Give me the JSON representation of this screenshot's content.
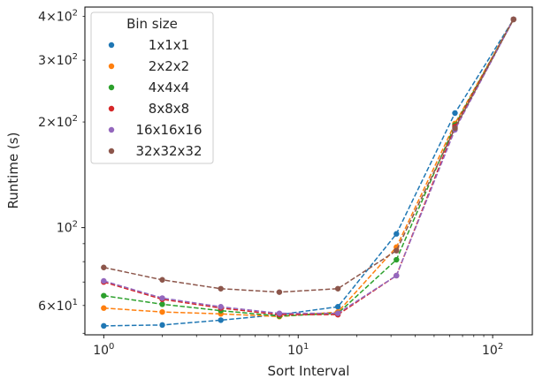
{
  "chart_data": {
    "type": "line",
    "xlabel": "Sort Interval",
    "ylabel": "Runtime (s)",
    "xscale": "log",
    "yscale": "log",
    "xlim": [
      0.8,
      160
    ],
    "ylim": [
      49.5,
      425
    ],
    "x": [
      1,
      2,
      4,
      8,
      16,
      32,
      64,
      128
    ],
    "x_ticks": [
      {
        "value": 1,
        "base": "10",
        "exp": "0"
      },
      {
        "value": 10,
        "base": "10",
        "exp": "1"
      },
      {
        "value": 100,
        "base": "10",
        "exp": "2"
      }
    ],
    "y_ticks": [
      {
        "value": 60,
        "mant": "6",
        "base": "10",
        "exp": "1"
      },
      {
        "value": 100,
        "mant": "",
        "base": "10",
        "exp": "2"
      },
      {
        "value": 200,
        "mant": "2",
        "base": "10",
        "exp": "2"
      },
      {
        "value": 300,
        "mant": "3",
        "base": "10",
        "exp": "2"
      },
      {
        "value": 400,
        "mant": "4",
        "base": "10",
        "exp": "2"
      }
    ],
    "legend": {
      "title": "Bin size",
      "position": "upper left"
    },
    "grid": false,
    "series": [
      {
        "name": "1x1x1",
        "color": "#1f77b4",
        "values": [
          52.5,
          52.8,
          54.5,
          56.5,
          59.5,
          96,
          212,
          392
        ]
      },
      {
        "name": "2x2x2",
        "color": "#ff7f0e",
        "values": [
          59,
          57.5,
          56.8,
          55.8,
          57.5,
          88,
          198,
          392
        ]
      },
      {
        "name": "4x4x4",
        "color": "#2ca02c",
        "values": [
          64,
          60.5,
          58,
          56,
          57,
          81,
          196,
          392
        ]
      },
      {
        "name": "8x8x8",
        "color": "#d62728",
        "values": [
          70,
          62.5,
          59,
          56.5,
          56.5,
          73,
          194,
          392
        ]
      },
      {
        "name": "16x16x16",
        "color": "#9467bd",
        "values": [
          70.5,
          63,
          59.5,
          57,
          57,
          73,
          190,
          392
        ]
      },
      {
        "name": "32x32x32",
        "color": "#8c564b",
        "values": [
          77,
          71,
          67,
          65.5,
          67,
          86,
          192,
          392
        ]
      }
    ]
  }
}
